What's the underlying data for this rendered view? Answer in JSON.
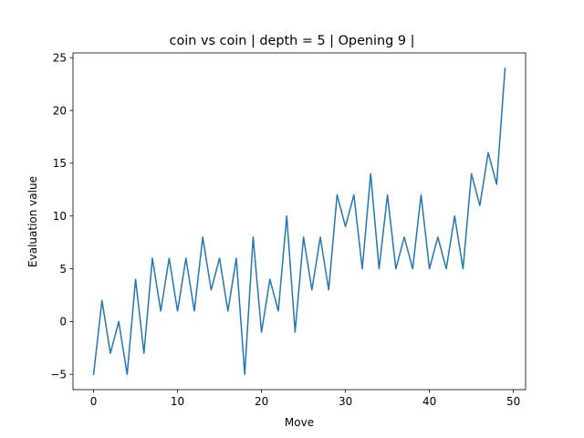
{
  "chart_data": {
    "type": "line",
    "title": "coin vs coin | depth = 5 | Opening 9 |",
    "xlabel": "Move",
    "ylabel": "Evaluation value",
    "xlim": [
      -2.45,
      51.45
    ],
    "ylim": [
      -6.45,
      25.45
    ],
    "xticks": [
      0,
      10,
      20,
      30,
      40,
      50
    ],
    "yticks": [
      -5,
      0,
      5,
      10,
      15,
      20,
      25
    ],
    "grid": false,
    "legend": "none",
    "series": [
      {
        "color": "#1f77b4",
        "x": [
          0,
          1,
          2,
          3,
          4,
          5,
          6,
          7,
          8,
          9,
          10,
          11,
          12,
          13,
          14,
          15,
          16,
          17,
          18,
          19,
          20,
          21,
          22,
          23,
          24,
          25,
          26,
          27,
          28,
          29,
          30,
          31,
          32,
          33,
          34,
          35,
          36,
          37,
          38,
          39,
          40,
          41,
          42,
          43,
          44,
          45,
          46,
          47,
          48,
          49
        ],
        "values": [
          -5,
          2,
          -3,
          0,
          -5,
          4,
          -3,
          6,
          1,
          6,
          1,
          6,
          1,
          8,
          3,
          6,
          1,
          6,
          -5,
          8,
          -1,
          4,
          1,
          10,
          -1,
          8,
          3,
          8,
          3,
          12,
          9,
          12,
          5,
          14,
          5,
          12,
          5,
          8,
          5,
          12,
          5,
          8,
          5,
          10,
          5,
          14,
          11,
          16,
          13,
          24
        ]
      }
    ]
  }
}
